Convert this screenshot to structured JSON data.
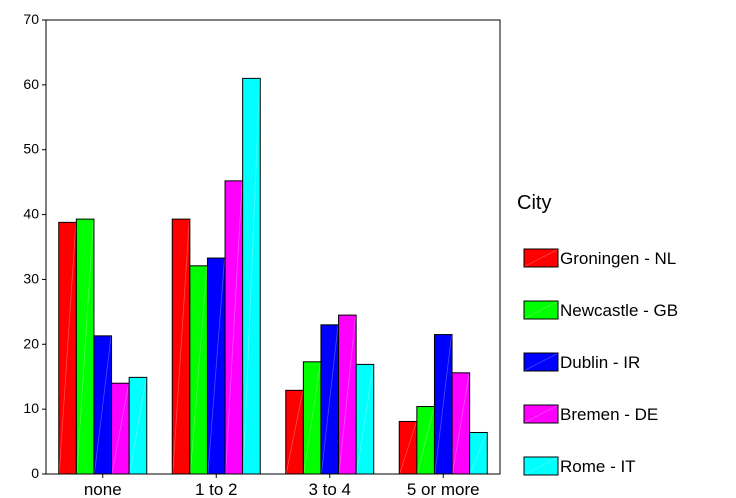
{
  "chart_data": {
    "type": "bar",
    "title": "",
    "xlabel": "",
    "ylabel": "",
    "ylim": [
      0,
      70
    ],
    "yticks": [
      0,
      10,
      20,
      30,
      40,
      50,
      60,
      70
    ],
    "grid": false,
    "legend_position": "right",
    "legend_title": "City",
    "categories": [
      "none",
      "1 to 2",
      "3 to 4",
      "5 or more"
    ],
    "series": [
      {
        "name": "Groningen - NL",
        "color": "#ff0000",
        "values": [
          38.8,
          39.3,
          12.9,
          8.1
        ]
      },
      {
        "name": "Newcastle - GB",
        "color": "#00ff00",
        "values": [
          39.3,
          32.1,
          17.3,
          10.4
        ]
      },
      {
        "name": "Dublin - IR",
        "color": "#0000ff",
        "values": [
          21.3,
          33.3,
          23.0,
          21.5
        ]
      },
      {
        "name": "Bremen - DE",
        "color": "#ff00ff",
        "values": [
          14.0,
          45.2,
          24.5,
          15.6
        ]
      },
      {
        "name": "Rome - IT",
        "color": "#00ffff",
        "values": [
          14.9,
          61.0,
          16.9,
          6.4
        ]
      }
    ]
  }
}
